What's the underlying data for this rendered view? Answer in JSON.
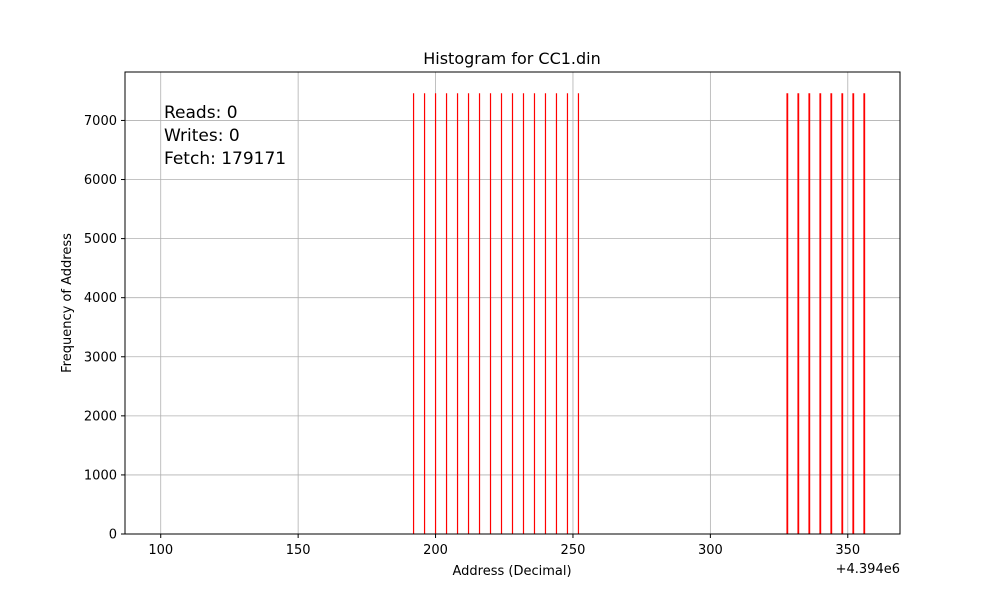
{
  "chart_data": {
    "type": "bar",
    "title": "Histogram for CC1.din",
    "xlabel": "Address (Decimal)",
    "ylabel": "Frequency of Address",
    "x_offset_label": "+4.394e6",
    "xlim": [
      87,
      369
    ],
    "ylim": [
      0,
      7820
    ],
    "xticks": [
      100,
      150,
      200,
      250,
      300,
      350
    ],
    "yticks": [
      0,
      1000,
      2000,
      3000,
      4000,
      5000,
      6000,
      7000
    ],
    "grid": true,
    "bar_color": "#ff0000",
    "series": [
      {
        "x": [
          192,
          196,
          200,
          204,
          208,
          212,
          216,
          220,
          224,
          228,
          232,
          236,
          240,
          244,
          248,
          252
        ],
        "values": [
          7460,
          7460,
          7460,
          7460,
          7460,
          7460,
          7460,
          7460,
          7460,
          7460,
          7460,
          7460,
          7460,
          7460,
          7460,
          7460
        ]
      },
      {
        "x": [
          328,
          332,
          336,
          340,
          344,
          348,
          352,
          356
        ],
        "values": [
          7460,
          7460,
          7460,
          7460,
          7460,
          7460,
          7460,
          7460
        ]
      }
    ],
    "annotations": [
      "Reads: 0",
      "Writes: 0",
      "Fetch: 179171"
    ]
  }
}
